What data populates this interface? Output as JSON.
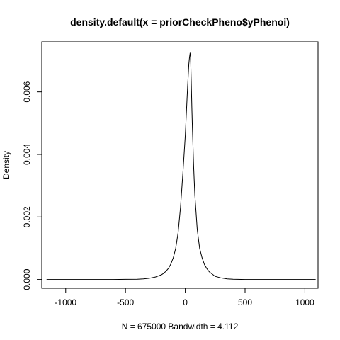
{
  "chart_data": {
    "type": "line",
    "title": "density.default(x = priorCheckPheno$yPhenoi)",
    "xlabel": "N = 675000   Bandwidth = 4.112",
    "ylabel": "Density",
    "xlim": [
      -1200,
      1110
    ],
    "ylim": [
      -0.00028,
      0.0076
    ],
    "xticks": [
      -1000,
      -500,
      0,
      500,
      1000
    ],
    "xtick_labels": [
      "-1000",
      "-500",
      "0",
      "500",
      "1000"
    ],
    "yticks": [
      0,
      0.002,
      0.004,
      0.006
    ],
    "ytick_labels": [
      "0.000",
      "0.002",
      "0.004",
      "0.006"
    ],
    "grid": false,
    "series": [
      {
        "line_color": "#000000",
        "x": [
          -1160,
          -1000,
          -800,
          -600,
          -500,
          -400,
          -350,
          -300,
          -250,
          -200,
          -180,
          -160,
          -140,
          -120,
          -100,
          -80,
          -60,
          -40,
          -20,
          0,
          10,
          20,
          30,
          35,
          40,
          43,
          46,
          50,
          55,
          60,
          70,
          80,
          100,
          120,
          140,
          160,
          180,
          200,
          250,
          300,
          350,
          400,
          500,
          600,
          800,
          1000,
          1090
        ],
        "y": [
          0.0,
          0.0,
          0.0,
          0.0,
          5e-06,
          1e-05,
          2e-05,
          4e-05,
          8e-05,
          0.00015,
          0.0002,
          0.00027,
          0.00036,
          0.0005,
          0.0007,
          0.001,
          0.0015,
          0.0023,
          0.0034,
          0.0046,
          0.0054,
          0.0062,
          0.0069,
          0.0071,
          0.00723,
          0.0072,
          0.0069,
          0.0063,
          0.0055,
          0.0048,
          0.0036,
          0.0027,
          0.0016,
          0.001,
          0.0007,
          0.00048,
          0.00035,
          0.00025,
          0.0001,
          5e-05,
          2e-05,
          1e-05,
          0.0,
          0.0,
          0.0,
          0.0,
          0.0
        ]
      }
    ]
  }
}
